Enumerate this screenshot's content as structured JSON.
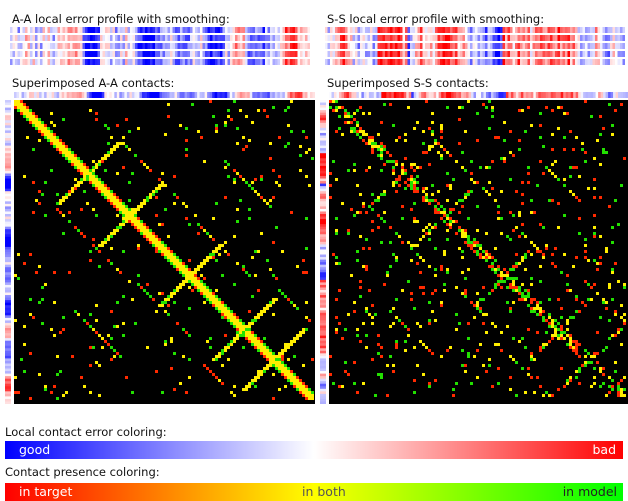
{
  "panels": {
    "aa_profile_title": "A-A local error profile with smoothing:",
    "ss_profile_title": "S-S local error profile with smoothing:",
    "aa_contacts_title": "Superimposed A-A contacts:",
    "ss_contacts_title": "Superimposed S-S contacts:"
  },
  "legend": {
    "error_title": "Local contact error coloring:",
    "error_low": "good",
    "error_high": "bad",
    "presence_title": "Contact presence coloring:",
    "presence_left": "in target",
    "presence_mid": "in both",
    "presence_right": "in model"
  },
  "colors": {
    "good": "#0000ff",
    "neutral": "#ffffff",
    "bad": "#ff0000",
    "in_target": "#ff0000",
    "in_both": "#ffff00",
    "in_model": "#00ff00",
    "map_background": "#000000"
  }
}
